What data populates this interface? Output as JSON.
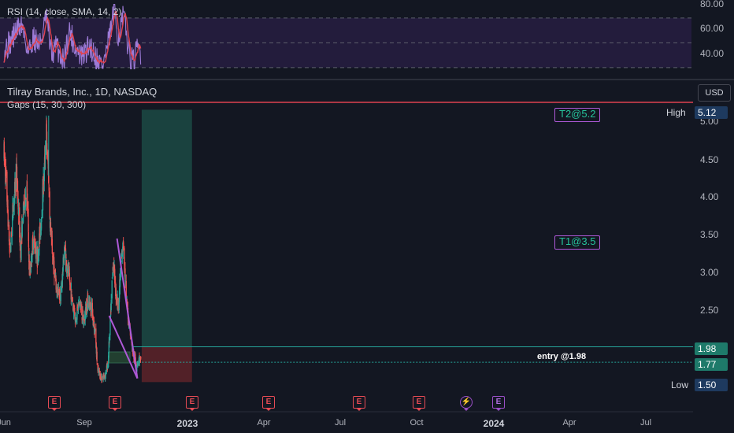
{
  "rsi_panel": {
    "title": "RSI (14, close, SMA, 14, 2)",
    "y_ticks": [
      "80.00",
      "60.00",
      "40.00"
    ]
  },
  "price_panel": {
    "title": "Tilray Brands, Inc., 1D, NASDAQ",
    "indicator": "Gaps (15, 30, 300)",
    "currency_button": "USD",
    "y_ticks": [
      "5.00",
      "4.50",
      "4.00",
      "3.50",
      "3.00",
      "2.50"
    ],
    "high_label": "High",
    "high_value": "5.12",
    "low_label": "Low",
    "low_value": "1.50",
    "entry_price_tag": "1.98",
    "last_price_tag": "1.77",
    "entry_annotation": "entry @1.98",
    "target1": "T1@3.5",
    "target2": "T2@5.2"
  },
  "x_axis": {
    "labels": [
      "Jun",
      "Sep",
      "2023",
      "Apr",
      "Jul",
      "Oct",
      "2024",
      "Apr",
      "Jul"
    ]
  },
  "events": {
    "earnings_glyph": "E",
    "dividend_glyph": "⚡"
  },
  "colors": {
    "background": "#131722",
    "up": "#26a69a",
    "down": "#ef5350",
    "rsi_line": "#9c7ad6",
    "rsi_ma": "#e0424f",
    "rsi_band": "#2a1f45",
    "trendline": "#ae59d8",
    "target_zone": "#1c4a44",
    "stop_zone": "#5a2229",
    "high_line": "#e0424f"
  },
  "chart_data": {
    "type": "candlestick",
    "symbol": "Tilray Brands, Inc.",
    "interval": "1D",
    "exchange": "NASDAQ",
    "y_range": [
      1.45,
      5.3
    ],
    "rsi_range": [
      28,
      82
    ],
    "period": [
      "2022-06-01",
      "2023-11-22"
    ],
    "price_path_dates": [
      "2022-06-01",
      "2022-06-10",
      "2022-06-25",
      "2022-07-05",
      "2022-07-20",
      "2022-08-05",
      "2022-08-18",
      "2022-08-30",
      "2022-09-10",
      "2022-09-25",
      "2022-10-10",
      "2022-10-25",
      "2022-11-05",
      "2022-11-15",
      "2022-11-25",
      "2022-12-10",
      "2022-12-25",
      "2023-01-10",
      "2023-01-25",
      "2023-02-10",
      "2023-02-25",
      "2023-03-10",
      "2023-03-25",
      "2023-04-10",
      "2023-04-25",
      "2023-05-10",
      "2023-05-25",
      "2023-06-05",
      "2023-06-20",
      "2023-07-05",
      "2023-07-15",
      "2023-07-25",
      "2023-08-05",
      "2023-08-15",
      "2023-08-25",
      "2023-09-05",
      "2023-09-15",
      "2023-09-25",
      "2023-10-05",
      "2023-10-15",
      "2023-10-25",
      "2023-11-05",
      "2023-11-15",
      "2023-11-22"
    ],
    "price_path_values": [
      4.6,
      4.2,
      3.2,
      3.8,
      4.35,
      3.3,
      3.9,
      4.1,
      2.9,
      3.5,
      3.15,
      3.7,
      4.3,
      4.9,
      3.9,
      3.2,
      2.75,
      2.65,
      3.3,
      2.95,
      2.6,
      2.35,
      2.6,
      2.3,
      2.6,
      2.55,
      2.2,
      1.65,
      1.55,
      1.6,
      1.75,
      2.35,
      3.2,
      2.7,
      2.55,
      3.1,
      3.4,
      2.6,
      2.35,
      2.05,
      1.85,
      1.75,
      1.82,
      1.77
    ],
    "rsi_path_dates": [
      "2022-06-01",
      "2022-06-25",
      "2022-07-20",
      "2022-08-10",
      "2022-09-05",
      "2022-09-25",
      "2022-10-20",
      "2022-11-15",
      "2022-12-05",
      "2022-12-25",
      "2023-01-20",
      "2023-02-15",
      "2023-03-10",
      "2023-04-05",
      "2023-05-05",
      "2023-06-05",
      "2023-06-25",
      "2023-07-20",
      "2023-08-10",
      "2023-08-25",
      "2023-09-15",
      "2023-10-10",
      "2023-10-25",
      "2023-11-10",
      "2023-11-22"
    ],
    "rsi_path_values": [
      45,
      50,
      60,
      65,
      42,
      55,
      48,
      70,
      40,
      48,
      35,
      60,
      45,
      38,
      48,
      36,
      32,
      52,
      78,
      55,
      72,
      38,
      34,
      46,
      42
    ],
    "trade_setup": {
      "entry": 1.98,
      "stop": 1.5,
      "target1": 3.5,
      "target2": 5.2,
      "last_price": 1.77,
      "high": 5.12,
      "low": 1.5
    },
    "wedge": {
      "upper": [
        [
          "2023-08-20",
          3.45
        ],
        [
          "2023-11-08",
          1.55
        ]
      ],
      "lower": [
        [
          "2023-07-20",
          2.4
        ],
        [
          "2023-11-08",
          1.55
        ]
      ]
    },
    "gap_zone": {
      "from": "2023-07-20",
      "to": "2023-10-10",
      "low": 1.76,
      "high": 1.91
    },
    "earnings_dates": [
      "2022-05-31",
      "2022-09-15",
      "2022-12-25",
      "2023-04-05",
      "2023-07-20",
      "2023-10-10"
    ],
    "dividend_date": "2023-11-22",
    "upcoming_earnings_date": "2024-01-05"
  }
}
